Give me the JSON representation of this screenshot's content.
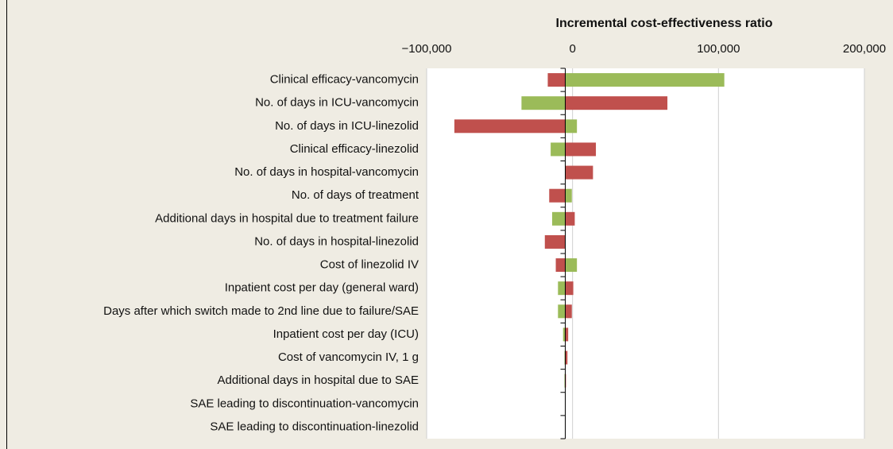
{
  "chart_data": {
    "type": "tornado",
    "title": "Incremental cost-effectiveness ratio",
    "categories": [
      "Clinical efficacy-vancomycin",
      "No. of days in ICU-vancomycin",
      "No. of days in ICU-linezolid",
      "Clinical efficacy-linezolid",
      "No. of days in hospital-vancomycin",
      "No. of days of treatment",
      "Additional days in hospital due to treatment failure",
      "No. of days in hospital-linezolid",
      "Cost of linezolid IV",
      "Inpatient cost per day (general ward)",
      "Days after which switch made to 2nd line due to failure/SAE",
      "Inpatient cost per day (ICU)",
      "Cost of vancomycin IV, 1 g",
      "Additional days in hospital due to SAE",
      "SAE leading to discontinuation-vancomycin",
      "SAE leading to discontinuation-linezolid"
    ],
    "base_value": -5000,
    "series": [
      {
        "color": "#9bbb59",
        "values": [
          104000,
          -35000,
          3000,
          -15000,
          -5000,
          -500,
          -14000,
          -5000,
          3000,
          -10000,
          -10000,
          -6500,
          -5500,
          -5500,
          -5000,
          -5000
        ]
      },
      {
        "color": "#c0504d",
        "values": [
          -17000,
          65000,
          -81000,
          16000,
          14000,
          -16000,
          1500,
          -19000,
          -11500,
          500,
          -500,
          -3000,
          -3500,
          -4500,
          -5000,
          -5000
        ]
      }
    ],
    "xlim": [
      -100000,
      200000
    ],
    "xticks": [
      {
        "value": -100000,
        "label": "−100,000"
      },
      0,
      {
        "value": 100000,
        "label": "100,000"
      },
      {
        "value": 200000,
        "label": "200,000"
      }
    ],
    "grid": true
  }
}
